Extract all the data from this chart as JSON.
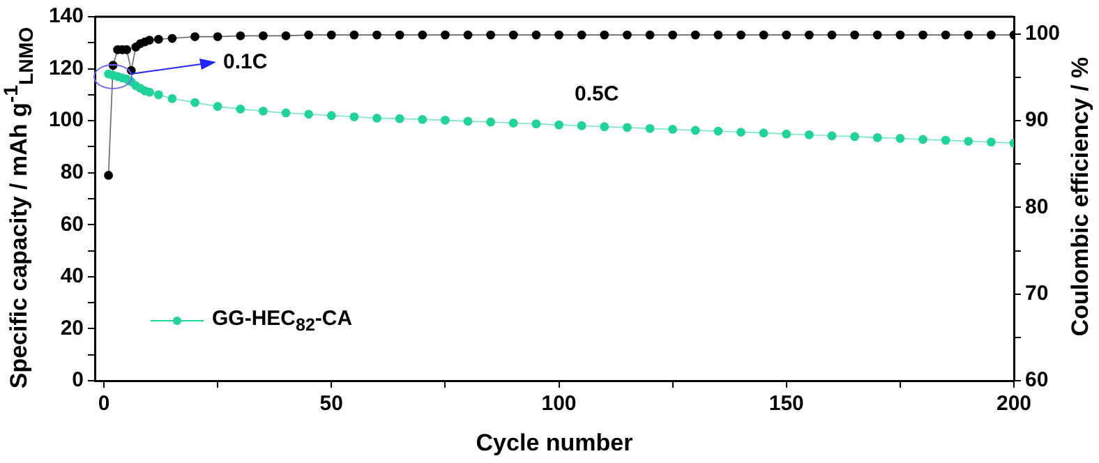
{
  "chart_data": {
    "type": "line",
    "xlabel": "Cycle number",
    "ylabel": "Specific capacity / mAh g$^{-1}$$_{LNMO}$",
    "y2label": "Coulombic efficiency / %",
    "xlim": [
      -2,
      200
    ],
    "xticks": [
      0,
      {
        "value": 25,
        "label": null
      },
      50,
      {
        "value": 75,
        "label": null
      },
      100,
      {
        "value": 125,
        "label": null
      },
      150,
      {
        "value": 175,
        "label": null
      },
      200
    ],
    "ylim": [
      0,
      140
    ],
    "yticks": [
      0,
      {
        "value": 10,
        "label": null
      },
      20,
      {
        "value": 30,
        "label": null
      },
      40,
      {
        "value": 50,
        "label": null
      },
      60,
      {
        "value": 70,
        "label": null
      },
      80,
      {
        "value": 90,
        "label": null
      },
      100,
      {
        "value": 110,
        "label": null
      },
      120,
      {
        "value": 130,
        "label": null
      },
      140
    ],
    "y2lim": [
      60,
      102
    ],
    "y2ticks": [
      60,
      {
        "value": 65,
        "label": null
      },
      70,
      {
        "value": 75,
        "label": null
      },
      80,
      {
        "value": 85,
        "label": null
      },
      90,
      {
        "value": 95,
        "label": null
      },
      100
    ],
    "grid": false,
    "legend": "bottom left",
    "marker": "circle",
    "line_style": "solid",
    "series": [
      {
        "name": "GG-HEC$_{82}$-CA",
        "color": "#1fd39a",
        "x": [
          1,
          2,
          3,
          4,
          5,
          6,
          7,
          8,
          9,
          10,
          12,
          15,
          20,
          25,
          30,
          35,
          40,
          45,
          50,
          55,
          60,
          65,
          70,
          75,
          80,
          85,
          90,
          95,
          100,
          105,
          110,
          115,
          120,
          125,
          130,
          135,
          140,
          145,
          150,
          155,
          160,
          165,
          170,
          175,
          180,
          185,
          190,
          195,
          200
        ],
        "values": [
          118,
          117.5,
          117,
          116.5,
          116,
          115,
          113.5,
          112.5,
          111.5,
          111,
          110,
          108.5,
          107,
          105.5,
          104.5,
          103.7,
          103,
          102.5,
          102,
          101.5,
          101,
          100.8,
          100.5,
          100.2,
          99.8,
          99.5,
          99.1,
          98.8,
          98.4,
          98.1,
          97.7,
          97.4,
          97,
          96.7,
          96.3,
          96,
          95.6,
          95.3,
          94.9,
          94.6,
          94.2,
          93.9,
          93.5,
          93.2,
          92.8,
          92.5,
          92.1,
          91.8,
          91.4
        ]
      },
      {
        "color": "#000000",
        "axis": "y2",
        "x": [
          1,
          2,
          3,
          4,
          5,
          6,
          7,
          8,
          9,
          10,
          12,
          15,
          20,
          25,
          30,
          35,
          40,
          45,
          50,
          55,
          60,
          65,
          70,
          75,
          80,
          85,
          90,
          95,
          100,
          105,
          110,
          115,
          120,
          125,
          130,
          135,
          140,
          145,
          150,
          155,
          160,
          165,
          170,
          175,
          180,
          185,
          190,
          195,
          200
        ],
        "values": [
          83.7,
          96.4,
          98.2,
          98.2,
          98.2,
          95.8,
          98.5,
          98.9,
          99.1,
          99.3,
          99.4,
          99.5,
          99.7,
          99.7,
          99.8,
          99.8,
          99.8,
          99.9,
          99.9,
          99.9,
          99.9,
          99.9,
          99.9,
          99.9,
          99.9,
          99.9,
          99.9,
          99.9,
          99.9,
          99.9,
          99.9,
          99.9,
          99.9,
          99.9,
          99.9,
          99.9,
          99.9,
          99.9,
          99.9,
          99.9,
          99.9,
          99.9,
          99.9,
          99.9,
          99.9,
          99.9,
          99.9,
          99.9,
          99.9
        ]
      }
    ],
    "annotations": [
      "0.1C",
      "0.5C"
    ]
  }
}
